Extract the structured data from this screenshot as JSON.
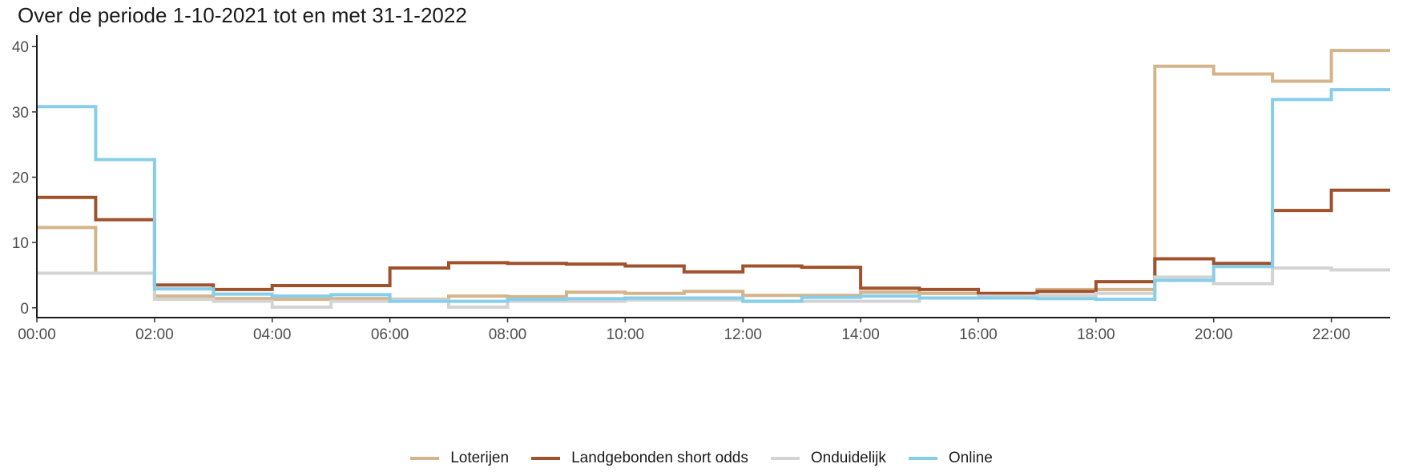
{
  "chart_data": {
    "type": "line",
    "step": true,
    "title": "Over de periode 1-10-2021 tot en met 31-1-2022",
    "xlabel": "",
    "ylabel": "",
    "x": [
      0,
      1,
      2,
      3,
      4,
      5,
      6,
      7,
      8,
      9,
      10,
      11,
      12,
      13,
      14,
      15,
      16,
      17,
      18,
      19,
      20,
      21,
      22
    ],
    "xlim": [
      0,
      23
    ],
    "ylim": [
      -1.5,
      41.5
    ],
    "yticks": [
      0,
      10,
      20,
      30,
      40
    ],
    "xtick_labels": [
      "00:00",
      "02:00",
      "04:00",
      "06:00",
      "08:00",
      "10:00",
      "12:00",
      "14:00",
      "16:00",
      "18:00",
      "20:00",
      "22:00"
    ],
    "xtick_values": [
      0,
      2,
      4,
      6,
      8,
      10,
      12,
      14,
      16,
      18,
      20,
      22
    ],
    "grid": false,
    "legend_position": "bottom",
    "series": [
      {
        "name": "Loterijen",
        "color": "#D4B48A",
        "values": [
          12.3,
          5.3,
          1.8,
          1.4,
          1.3,
          1.4,
          1.3,
          1.8,
          1.7,
          2.4,
          2.2,
          2.5,
          1.9,
          1.9,
          2.4,
          2.2,
          2.0,
          2.8,
          2.8,
          37.0,
          35.8,
          34.7,
          39.4
        ]
      },
      {
        "name": "Landgebonden short odds",
        "color": "#A0522D",
        "values": [
          16.9,
          13.5,
          3.5,
          2.8,
          3.4,
          3.4,
          6.1,
          6.9,
          6.8,
          6.7,
          6.4,
          5.5,
          6.4,
          6.2,
          3.0,
          2.8,
          2.2,
          2.5,
          4.0,
          7.5,
          6.8,
          14.9,
          18.0
        ]
      },
      {
        "name": "Onduidelijk",
        "color": "#D3D3D3",
        "values": [
          5.3,
          5.3,
          1.3,
          1.0,
          0.1,
          1.0,
          1.2,
          0.1,
          1.0,
          1.0,
          1.2,
          1.2,
          1.0,
          1.0,
          1.0,
          1.5,
          1.8,
          1.9,
          2.2,
          4.7,
          3.7,
          6.1,
          5.8
        ]
      },
      {
        "name": "Online",
        "color": "#87CEEB",
        "values": [
          30.8,
          22.7,
          2.9,
          2.1,
          1.8,
          2.0,
          1.0,
          1.0,
          1.3,
          1.4,
          1.5,
          1.5,
          1.0,
          1.6,
          1.8,
          1.5,
          1.5,
          1.4,
          1.3,
          4.2,
          6.3,
          31.9,
          33.4
        ]
      }
    ]
  }
}
